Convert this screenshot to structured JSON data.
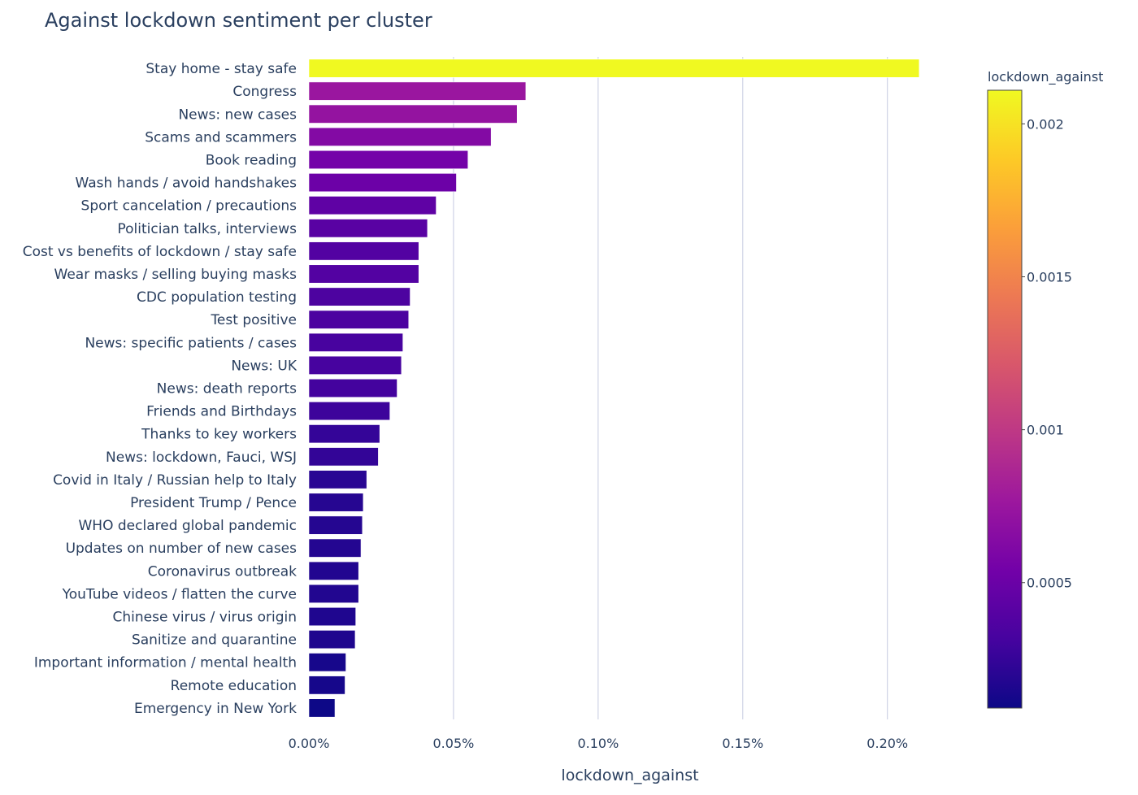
{
  "chart_data": {
    "type": "bar",
    "orientation": "horizontal",
    "title": "Against lockdown sentiment per cluster",
    "xlabel": "lockdown_against",
    "ylabel": "",
    "xlim": [
      0,
      0.00222
    ],
    "x_ticks": [
      0,
      0.0005,
      0.001,
      0.0015,
      0.002
    ],
    "x_tick_labels": [
      "0.00%",
      "0.05%",
      "0.10%",
      "0.15%",
      "0.20%"
    ],
    "grid": "vertical",
    "categories": [
      "Stay home - stay safe",
      "Congress",
      "News: new cases",
      "Scams and scammers",
      "Book reading",
      "Wash hands / avoid handshakes",
      "Sport cancelation / precautions",
      "Politician talks, interviews",
      "Cost vs benefits of lockdown / stay safe",
      "Wear masks / selling buying masks",
      "CDC population testing",
      "Test positive",
      "News: specific patients / cases",
      "News: UK",
      "News: death reports",
      "Friends and Birthdays",
      "Thanks to key workers",
      "News: lockdown, Fauci, WSJ",
      "Covid in Italy / Russian help to Italy",
      "President Trump / Pence",
      "WHO declared global pandemic",
      "Updates on number of new cases",
      "Coronavirus outbreak",
      "YouTube videos / flatten the curve",
      "Chinese virus / virus origin",
      "Sanitize and quarantine",
      "Important information / mental health",
      "Remote education",
      "Emergency in New York"
    ],
    "values": [
      0.00211,
      0.00075,
      0.00072,
      0.00063,
      0.00055,
      0.00051,
      0.00044,
      0.00041,
      0.00038,
      0.00038,
      0.00035,
      0.000345,
      0.000325,
      0.00032,
      0.000305,
      0.00028,
      0.000245,
      0.00024,
      0.0002,
      0.000188,
      0.000185,
      0.00018,
      0.000172,
      0.000172,
      0.000162,
      0.00016,
      0.000128,
      0.000125,
      9e-05
    ],
    "colorbar": {
      "title": "lockdown_against",
      "range": [
        9e-05,
        0.00211
      ],
      "ticks": [
        0.0005,
        0.001,
        0.0015,
        0.002
      ],
      "tick_labels": [
        "0.0005",
        "0.001",
        "0.0015",
        "0.002"
      ],
      "colorscale": [
        "#0d0887",
        "#46039f",
        "#7201a8",
        "#9c179e",
        "#bd3786",
        "#d8576b",
        "#ed7953",
        "#fb9f3a",
        "#fdca26",
        "#f0f921"
      ]
    }
  }
}
